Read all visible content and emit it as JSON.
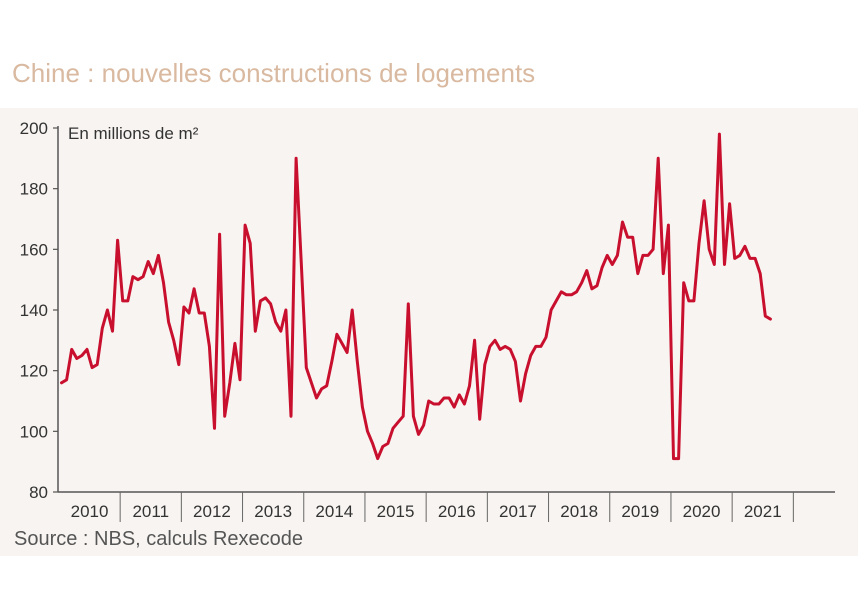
{
  "title": "Chine : nouvelles constructions de logements",
  "source": "Source : NBS, calculs Rexecode",
  "chart_data": {
    "type": "line",
    "title": "Chine : nouvelles constructions de logements",
    "unit_label": "En  millions de  m²",
    "ylim": [
      80,
      200
    ],
    "yticks": [
      80,
      100,
      120,
      140,
      160,
      180,
      200
    ],
    "years": [
      "2010",
      "2011",
      "2012",
      "2013",
      "2014",
      "2015",
      "2016",
      "2017",
      "2018",
      "2019",
      "2020",
      "2021"
    ],
    "x_start": "2010-01",
    "frequency": "monthly",
    "grid": false,
    "line_color": "#c8102e",
    "series": [
      {
        "values": [
          116,
          117,
          127,
          124,
          125,
          127,
          121,
          122,
          134,
          140,
          133,
          163,
          143,
          143,
          151,
          150,
          151,
          156,
          152,
          158,
          149,
          136,
          130,
          122,
          141,
          139,
          147,
          139,
          139,
          128,
          101,
          165,
          105,
          116,
          129,
          117,
          168,
          162,
          133,
          143,
          144,
          142,
          136,
          133,
          140,
          105,
          190,
          156,
          121,
          116,
          111,
          114,
          115,
          123,
          132,
          129,
          126,
          140,
          123,
          108,
          100,
          96,
          91,
          95,
          96,
          101,
          103,
          105,
          142,
          105,
          99,
          102,
          110,
          109,
          109,
          111,
          111,
          108,
          112,
          109,
          115,
          130,
          104,
          122,
          128,
          130,
          127,
          128,
          127,
          123,
          110,
          119,
          125,
          128,
          128,
          131,
          140,
          143,
          146,
          145,
          145,
          146,
          149,
          153,
          147,
          148,
          154,
          158,
          155,
          158,
          169,
          164,
          164,
          152,
          158,
          158,
          160,
          190,
          152,
          168,
          91,
          91,
          149,
          143,
          143,
          162,
          176,
          160,
          155,
          198,
          155,
          175,
          157,
          158,
          161,
          157,
          157,
          152,
          138,
          137
        ]
      }
    ]
  }
}
